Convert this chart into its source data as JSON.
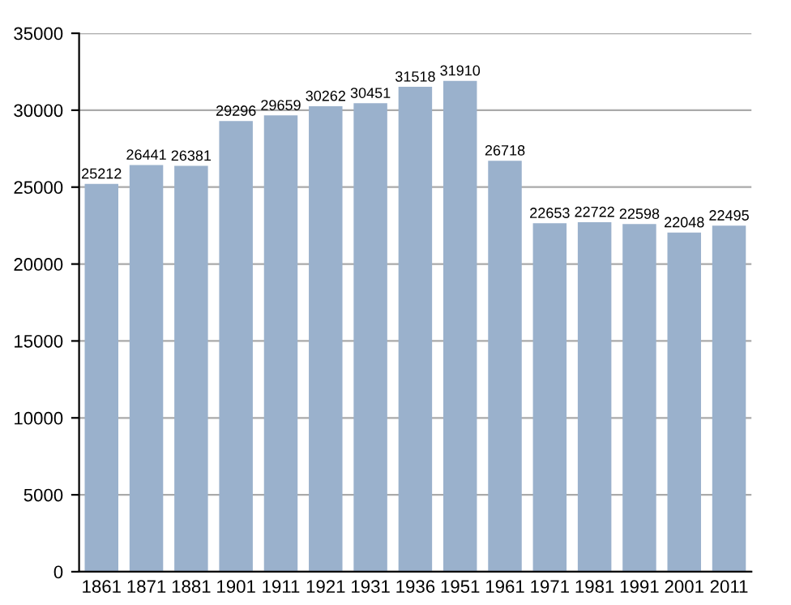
{
  "chart_data": {
    "type": "bar",
    "categories": [
      "1861",
      "1871",
      "1881",
      "1901",
      "1911",
      "1921",
      "1931",
      "1936",
      "1951",
      "1961",
      "1971",
      "1981",
      "1991",
      "2001",
      "2011"
    ],
    "values": [
      25212,
      26441,
      26381,
      29296,
      29659,
      30262,
      30451,
      31518,
      31910,
      26718,
      22653,
      22722,
      22598,
      22048,
      22495
    ],
    "color": "#9ab1cc",
    "ylim": [
      0,
      35000
    ],
    "yticks": [
      0,
      5000,
      10000,
      15000,
      20000,
      25000,
      30000,
      35000
    ],
    "grid": "y",
    "data_labels": true
  }
}
